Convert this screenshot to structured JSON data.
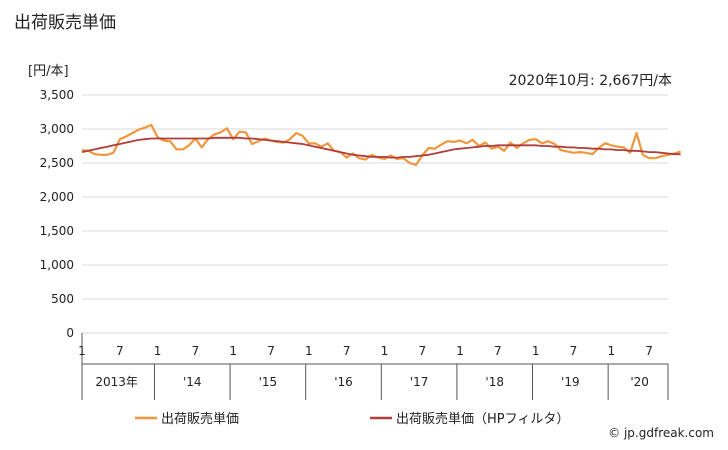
{
  "header": {
    "title": "出荷販売単価",
    "unit": "[円/本]"
  },
  "annotation": "2020年10月: 2,667円/本",
  "credit": "© jp.gdfreak.com",
  "chart_data": {
    "type": "line",
    "title": "出荷販売単価",
    "ylabel": "[円/本]",
    "ylim": [
      0,
      3500
    ],
    "yticks": [
      "3,500",
      "3,000",
      "2,500",
      "2,000",
      "1,500",
      "1,000",
      "500",
      "0"
    ],
    "ytick_values": [
      3500,
      3000,
      2500,
      2000,
      1500,
      1000,
      500,
      0
    ],
    "x_start": "2013-01",
    "x_end": "2020-10",
    "month_ticks": [
      {
        "x": "2013-01",
        "label": "1"
      },
      {
        "x": "2013-07",
        "label": "7"
      },
      {
        "x": "2014-01",
        "label": "1"
      },
      {
        "x": "2014-07",
        "label": "7"
      },
      {
        "x": "2015-01",
        "label": "1"
      },
      {
        "x": "2015-07",
        "label": "7"
      },
      {
        "x": "2016-01",
        "label": "1"
      },
      {
        "x": "2016-07",
        "label": "7"
      },
      {
        "x": "2017-01",
        "label": "1"
      },
      {
        "x": "2017-07",
        "label": "7"
      },
      {
        "x": "2018-01",
        "label": "1"
      },
      {
        "x": "2018-07",
        "label": "7"
      },
      {
        "x": "2019-01",
        "label": "1"
      },
      {
        "x": "2019-07",
        "label": "7"
      },
      {
        "x": "2020-01",
        "label": "1"
      },
      {
        "x": "2020-07",
        "label": "7"
      }
    ],
    "year_labels": [
      {
        "year": 2013,
        "label": "2013年"
      },
      {
        "year": 2014,
        "label": "'14"
      },
      {
        "year": 2015,
        "label": "'15"
      },
      {
        "year": 2016,
        "label": "'16"
      },
      {
        "year": 2017,
        "label": "'17"
      },
      {
        "year": 2018,
        "label": "'18"
      },
      {
        "year": 2019,
        "label": "'19"
      },
      {
        "year": 2020,
        "label": "'20"
      }
    ],
    "grid": true,
    "legend_position": "bottom",
    "series": [
      {
        "name": "出荷販売単価",
        "color": "#f0963c",
        "values": [
          2690,
          2680,
          2630,
          2620,
          2620,
          2650,
          2850,
          2890,
          2940,
          2990,
          3020,
          3060,
          2880,
          2830,
          2820,
          2700,
          2700,
          2760,
          2860,
          2730,
          2850,
          2920,
          2950,
          3010,
          2850,
          2960,
          2950,
          2780,
          2820,
          2860,
          2830,
          2810,
          2800,
          2850,
          2940,
          2900,
          2790,
          2790,
          2740,
          2790,
          2680,
          2660,
          2580,
          2640,
          2570,
          2550,
          2620,
          2580,
          2560,
          2610,
          2560,
          2570,
          2500,
          2470,
          2610,
          2720,
          2710,
          2770,
          2820,
          2810,
          2830,
          2790,
          2840,
          2750,
          2800,
          2710,
          2740,
          2680,
          2800,
          2720,
          2790,
          2840,
          2850,
          2790,
          2820,
          2780,
          2690,
          2670,
          2650,
          2660,
          2650,
          2630,
          2720,
          2790,
          2760,
          2740,
          2730,
          2650,
          2940,
          2620,
          2570,
          2570,
          2600,
          2620,
          2640,
          2667
        ]
      },
      {
        "name": "出荷販売単価（HPフィルタ）",
        "color": "#b03c3c",
        "values": [
          2660,
          2680,
          2700,
          2720,
          2740,
          2760,
          2780,
          2800,
          2820,
          2840,
          2850,
          2860,
          2860,
          2860,
          2860,
          2860,
          2860,
          2860,
          2860,
          2860,
          2860,
          2870,
          2870,
          2870,
          2870,
          2870,
          2860,
          2860,
          2850,
          2840,
          2830,
          2820,
          2810,
          2800,
          2790,
          2780,
          2760,
          2740,
          2720,
          2700,
          2680,
          2660,
          2640,
          2620,
          2610,
          2600,
          2590,
          2590,
          2590,
          2580,
          2580,
          2590,
          2590,
          2600,
          2610,
          2620,
          2640,
          2660,
          2680,
          2700,
          2710,
          2720,
          2730,
          2740,
          2750,
          2750,
          2760,
          2760,
          2760,
          2760,
          2760,
          2760,
          2760,
          2750,
          2750,
          2740,
          2740,
          2730,
          2730,
          2720,
          2720,
          2710,
          2710,
          2700,
          2700,
          2690,
          2690,
          2680,
          2680,
          2670,
          2660,
          2660,
          2650,
          2640,
          2630,
          2630
        ]
      }
    ]
  }
}
